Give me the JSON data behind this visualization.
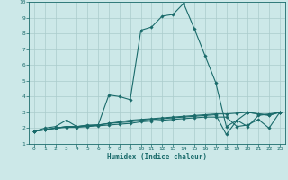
{
  "xlabel": "Humidex (Indice chaleur)",
  "bg_color": "#cce8e8",
  "grid_color": "#aacccc",
  "line_color": "#1a6b6b",
  "xlim": [
    -0.5,
    23.5
  ],
  "ylim": [
    1,
    10
  ],
  "xticks": [
    0,
    1,
    2,
    3,
    4,
    5,
    6,
    7,
    8,
    9,
    10,
    11,
    12,
    13,
    14,
    15,
    16,
    17,
    18,
    19,
    20,
    21,
    22,
    23
  ],
  "yticks": [
    1,
    2,
    3,
    4,
    5,
    6,
    7,
    8,
    9,
    10
  ],
  "series": [
    {
      "x": [
        0,
        1,
        2,
        3,
        4,
        5,
        6,
        7,
        8,
        9,
        10,
        11,
        12,
        13,
        14,
        15,
        16,
        17,
        18,
        19,
        20,
        21,
        22,
        23
      ],
      "y": [
        1.8,
        2.0,
        2.1,
        2.5,
        2.1,
        2.2,
        2.2,
        4.1,
        4.0,
        3.8,
        8.2,
        8.4,
        9.1,
        9.2,
        9.9,
        8.3,
        6.6,
        4.9,
        2.1,
        2.5,
        2.1,
        2.8,
        2.9,
        3.0
      ]
    },
    {
      "x": [
        0,
        1,
        2,
        3,
        4,
        5,
        6,
        7,
        8,
        9,
        10,
        11,
        12,
        13,
        14,
        15,
        16,
        17,
        18,
        19,
        20,
        21,
        22,
        23
      ],
      "y": [
        1.8,
        1.9,
        2.0,
        2.1,
        2.1,
        2.15,
        2.2,
        2.3,
        2.4,
        2.5,
        2.55,
        2.6,
        2.65,
        2.7,
        2.75,
        2.8,
        2.85,
        2.9,
        2.9,
        2.95,
        3.0,
        2.9,
        2.8,
        3.0
      ]
    },
    {
      "x": [
        0,
        1,
        2,
        3,
        4,
        5,
        6,
        7,
        8,
        9,
        10,
        11,
        12,
        13,
        14,
        15,
        16,
        17,
        18,
        19,
        20,
        21,
        22,
        23
      ],
      "y": [
        1.8,
        1.9,
        2.0,
        2.05,
        2.05,
        2.1,
        2.15,
        2.2,
        2.25,
        2.3,
        2.4,
        2.45,
        2.5,
        2.55,
        2.6,
        2.65,
        2.7,
        2.7,
        2.7,
        2.1,
        2.2,
        2.55,
        2.0,
        3.0
      ]
    },
    {
      "x": [
        0,
        1,
        2,
        3,
        4,
        5,
        6,
        7,
        8,
        9,
        10,
        11,
        12,
        13,
        14,
        15,
        16,
        17,
        18,
        19,
        20,
        21,
        22,
        23
      ],
      "y": [
        1.8,
        1.9,
        2.0,
        2.1,
        2.1,
        2.15,
        2.2,
        2.3,
        2.35,
        2.4,
        2.5,
        2.55,
        2.6,
        2.65,
        2.7,
        2.75,
        2.8,
        2.85,
        1.6,
        2.5,
        3.0,
        2.9,
        2.85,
        3.0
      ]
    }
  ]
}
